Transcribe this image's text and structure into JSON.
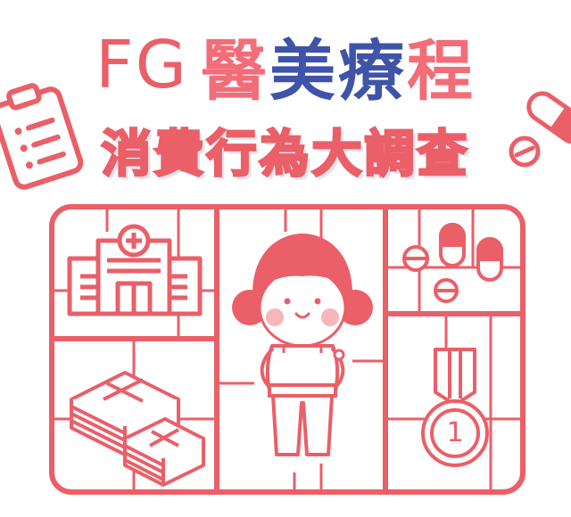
{
  "title": {
    "prefix": "FG",
    "main_pink": "醫",
    "main_blue": "美療",
    "main_pink2": "程"
  },
  "subtitle": "消費行為大調查",
  "medal_number": "1",
  "colors": {
    "accent": "#ea5f68",
    "blue": "#3f54a8",
    "cheek": "#f7b6bb",
    "background": "#ffffff"
  },
  "icons": [
    "clipboard-icon",
    "capsule-icon",
    "hospital-icon",
    "money-stack-icon",
    "girl-character",
    "pills-icon",
    "medal-icon"
  ]
}
